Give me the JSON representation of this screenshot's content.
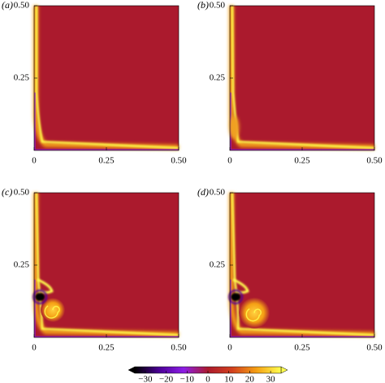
{
  "chart_data": {
    "type": "heatmap",
    "panels": [
      {
        "label": "(a)"
      },
      {
        "label": "(b)"
      },
      {
        "label": "(c)"
      },
      {
        "label": "(d)"
      }
    ],
    "xlim": [
      0,
      0.5
    ],
    "ylim": [
      0,
      0.5
    ],
    "xticks": [
      0,
      0.25,
      {
        "value": 0.5,
        "label": "0.50"
      }
    ],
    "yticks": [
      0.25,
      {
        "value": 0.5,
        "label": "0.50"
      }
    ],
    "colorbar": {
      "lim": [
        -35,
        35
      ],
      "ticks": [
        {
          "value": -30,
          "label": "−30"
        },
        {
          "value": -20,
          "label": "−20"
        },
        {
          "value": -10,
          "label": "−10"
        },
        0,
        10,
        20,
        30
      ],
      "colormap": [
        "#000000",
        "#4b0096",
        "#8c1ee6",
        "#ab1a2d",
        "#d2401e",
        "#f5a014",
        "#ffff50"
      ]
    }
  }
}
